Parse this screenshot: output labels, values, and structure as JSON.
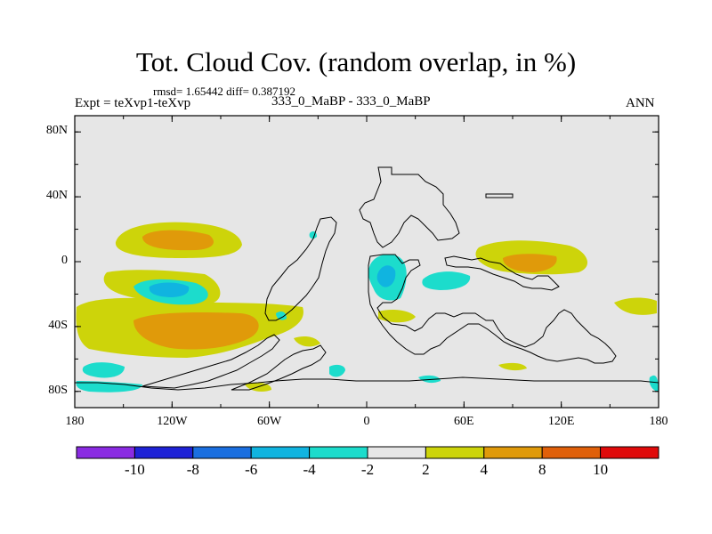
{
  "title": "Tot. Cloud Cov. (random overlap, in %)",
  "stats": "rmsd= 1.65442 diff= 0.387192",
  "experiment": "Expt = teXvp1-teXvp",
  "center_label": "333_0_MaBP - 333_0_MaBP",
  "season": "ANN",
  "y_ticks": [
    {
      "label": "80N",
      "lat": 80
    },
    {
      "label": "40N",
      "lat": 40
    },
    {
      "label": "0",
      "lat": 0
    },
    {
      "label": "40S",
      "lat": -40
    },
    {
      "label": "80S",
      "lat": -80
    }
  ],
  "x_ticks": [
    {
      "label": "180",
      "lon": -180
    },
    {
      "label": "120W",
      "lon": -120
    },
    {
      "label": "60W",
      "lon": -60
    },
    {
      "label": "0",
      "lon": 0
    },
    {
      "label": "60E",
      "lon": 60
    },
    {
      "label": "120E",
      "lon": 120
    },
    {
      "label": "180",
      "lon": 180
    }
  ],
  "colorbar": {
    "colors": [
      "#8a2be2",
      "#1e22d6",
      "#1a6fe0",
      "#10b4e0",
      "#1cdccc",
      "#e6e6e6",
      "#cdd40a",
      "#e09a0a",
      "#e0600a",
      "#e00a0a"
    ],
    "labels": [
      "-10",
      "-8",
      "-6",
      "-4",
      "-2",
      "2",
      "4",
      "8",
      "10"
    ]
  },
  "colors": {
    "background_field": "#e6e6e6",
    "positive_small": "#cdd40a",
    "positive_mid": "#e09a0a",
    "negative_small": "#1cdccc",
    "negative_mid": "#10b4e0"
  }
}
